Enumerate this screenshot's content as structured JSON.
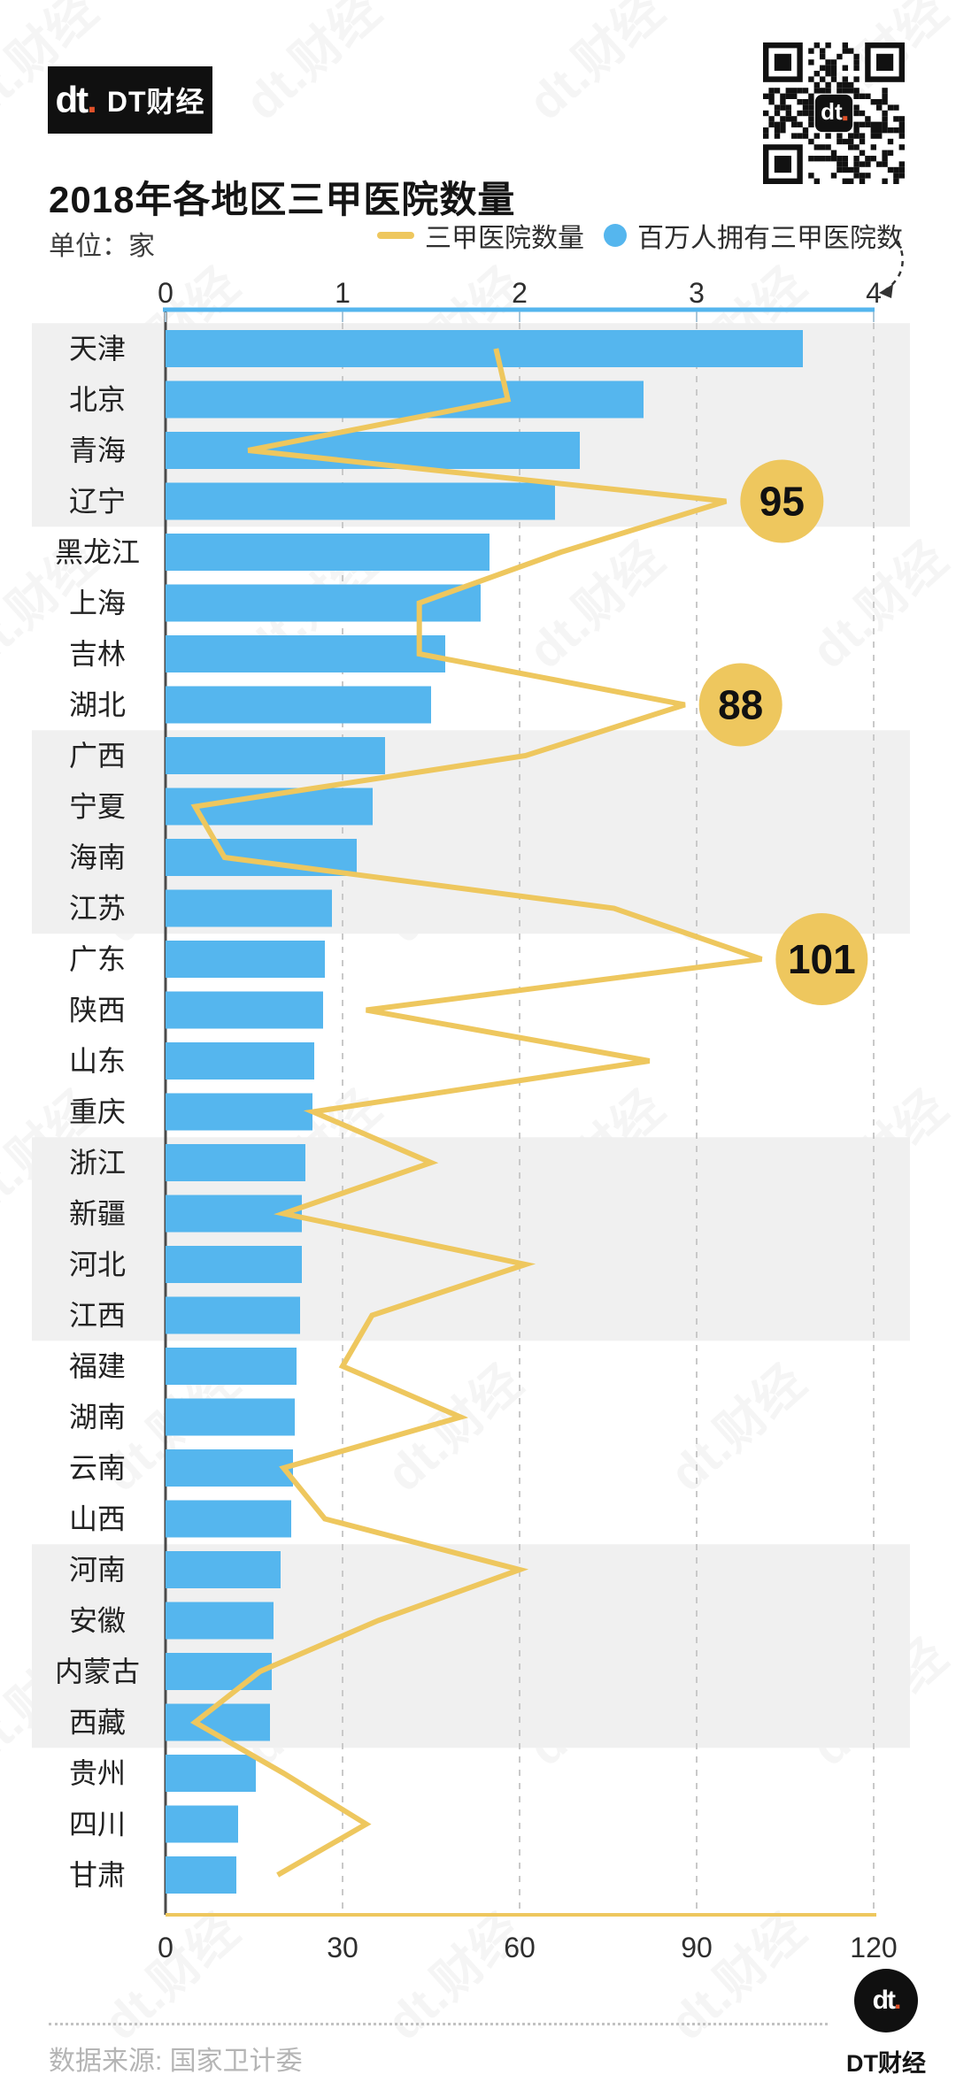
{
  "brand": {
    "mark": "dt",
    "dot": ".",
    "name": "DT财经"
  },
  "header": {
    "title": "2018年各地区三甲医院数量"
  },
  "meta": {
    "unit": "单位：家"
  },
  "legend": [
    {
      "label": "三甲医院数量",
      "swatch": "line",
      "color": "#eec75e"
    },
    {
      "label": "百万人拥有三甲医院数",
      "swatch": "dot",
      "color": "#55b6ee"
    }
  ],
  "watermark": "dt.财经",
  "colors": {
    "bar_blue": "#55b6ee",
    "line_yellow": "#eec75e",
    "band_gray": "#f0f0f0",
    "gridline": "#c9c9c9",
    "axis_dark": "#4a4a4a",
    "tick_text": "#2e2e2e",
    "row_label": "#222222",
    "callout_text": "#111111",
    "logo_orange": "#e0512a"
  },
  "chart_data": {
    "type": "bar",
    "orientation": "horizontal",
    "title": "2018年各地区三甲医院数量",
    "unit": "家",
    "grid": true,
    "legend_position": "top-right",
    "categories": [
      "天津",
      "北京",
      "青海",
      "辽宁",
      "黑龙江",
      "上海",
      "吉林",
      "湖北",
      "广西",
      "宁夏",
      "海南",
      "江苏",
      "广东",
      "陕西",
      "山东",
      "重庆",
      "浙江",
      "新疆",
      "河北",
      "江西",
      "福建",
      "湖南",
      "云南",
      "山西",
      "河南",
      "安徽",
      "内蒙古",
      "西藏",
      "贵州",
      "四川",
      "甘肃"
    ],
    "series": [
      {
        "name": "三甲医院数量",
        "type": "line",
        "axis": "bottom",
        "color": "#eec75e",
        "values": [
          56,
          58,
          14,
          95,
          67,
          43,
          43,
          88,
          61,
          5,
          10,
          76,
          101,
          34,
          82,
          25,
          45,
          20,
          61,
          35,
          30,
          50,
          20,
          27,
          60,
          36,
          16,
          5,
          20,
          34,
          19
        ]
      },
      {
        "name": "百万人拥有三甲医院数",
        "type": "bar",
        "axis": "top",
        "color": "#55b6ee",
        "values": [
          3.6,
          2.7,
          2.34,
          2.2,
          1.83,
          1.78,
          1.58,
          1.5,
          1.24,
          1.17,
          1.08,
          0.94,
          0.9,
          0.89,
          0.84,
          0.83,
          0.79,
          0.77,
          0.77,
          0.76,
          0.74,
          0.73,
          0.72,
          0.71,
          0.65,
          0.61,
          0.6,
          0.59,
          0.51,
          0.41,
          0.4
        ]
      }
    ],
    "callouts": [
      {
        "category": "辽宁",
        "value": 95
      },
      {
        "category": "湖北",
        "value": 88
      },
      {
        "category": "广东",
        "value": 101
      }
    ],
    "top_axis": {
      "label": "百万人拥有三甲医院数",
      "ticks": [
        0,
        1,
        2,
        3,
        4
      ],
      "range": [
        0,
        4
      ]
    },
    "bottom_axis": {
      "label": "三甲医院数量",
      "ticks": [
        0,
        30,
        60,
        90,
        120
      ],
      "range": [
        0,
        120
      ]
    }
  },
  "footer": {
    "source": "数据来源: 国家卫计委",
    "brand_name": "DT财经"
  }
}
